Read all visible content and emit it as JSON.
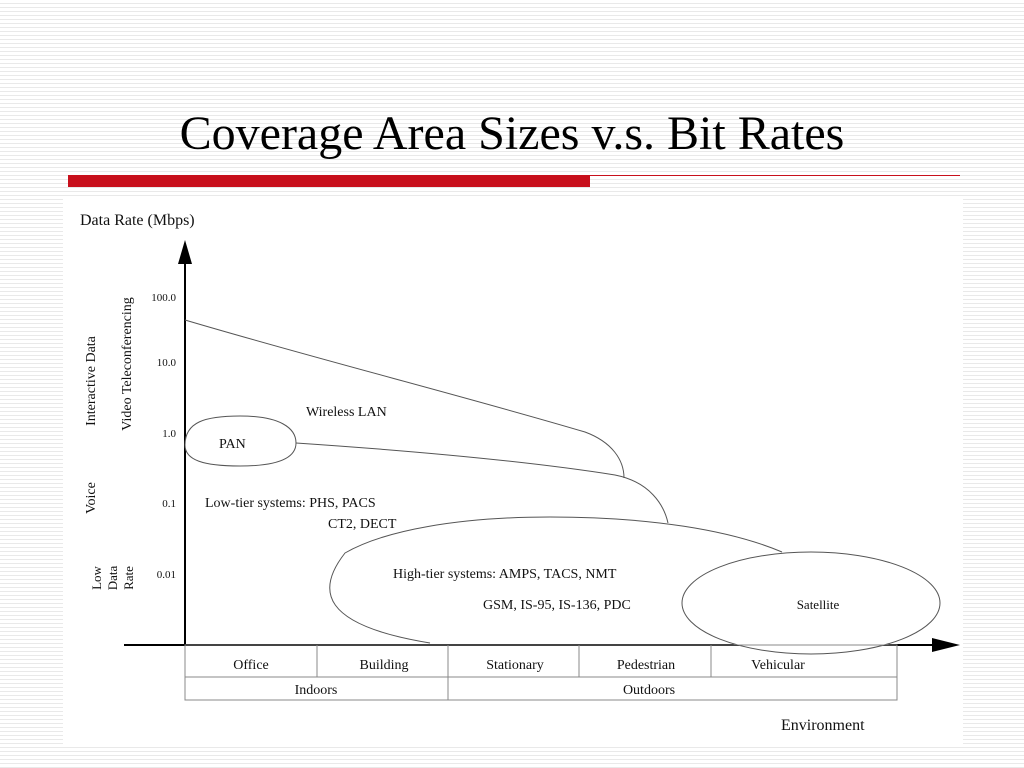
{
  "slide": {
    "title": "Coverage Area Sizes v.s. Bit Rates"
  },
  "axes": {
    "y_title": "Data Rate (Mbps)",
    "x_title": "Environment",
    "y_ticks": [
      "100.0",
      "10.0",
      "1.0",
      "0.1",
      "0.01"
    ]
  },
  "categories": {
    "video": "Video Teleconferencing",
    "interactive": "Interactive Data",
    "voice": "Voice",
    "low": [
      "Low",
      "Data",
      "Rate"
    ]
  },
  "regions": {
    "wlan": "Wireless LAN",
    "pan": "PAN",
    "low_tier": [
      "Low-tier systems: PHS, PACS",
      "CT2, DECT"
    ],
    "high_tier": [
      "High-tier systems: AMPS, TACS, NMT",
      "GSM, IS-95, IS-136, PDC"
    ],
    "satellite": "Satellite"
  },
  "environments": [
    "Office",
    "Building",
    "Stationary",
    "Pedestrian",
    "Vehicular"
  ],
  "groups": [
    "Indoors",
    "Outdoors"
  ]
}
